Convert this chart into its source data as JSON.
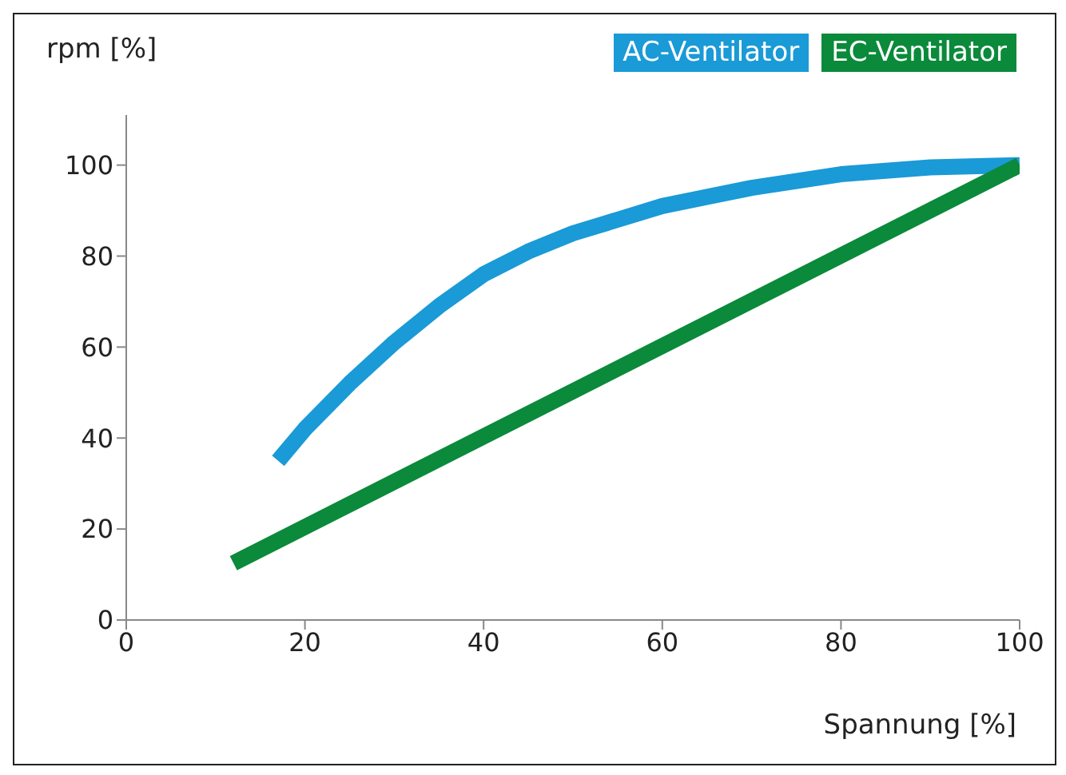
{
  "chart_data": {
    "type": "line",
    "xlabel": "Spannung [%]",
    "ylabel": "rpm [%]",
    "series": [
      {
        "name": "AC-Ventilator",
        "color": "#1a9ad6",
        "x": [
          17,
          20,
          25,
          30,
          35,
          40,
          45,
          50,
          55,
          60,
          70,
          80,
          90,
          100
        ],
        "values": [
          35,
          42,
          52,
          61,
          69,
          76,
          81,
          85,
          88,
          91,
          95,
          98,
          99.5,
          100
        ]
      },
      {
        "name": "EC-Ventilator",
        "color": "#0a8a3a",
        "x": [
          12,
          100
        ],
        "values": [
          12.5,
          100
        ]
      }
    ],
    "xlim": [
      0,
      100
    ],
    "ylim": [
      0,
      111
    ],
    "xticks": [
      0,
      20,
      40,
      60,
      80,
      100
    ],
    "yticks": [
      0,
      20,
      40,
      60,
      80,
      100
    ],
    "legend": "top right",
    "grid": false,
    "marker": "none",
    "line_style": "solid"
  }
}
